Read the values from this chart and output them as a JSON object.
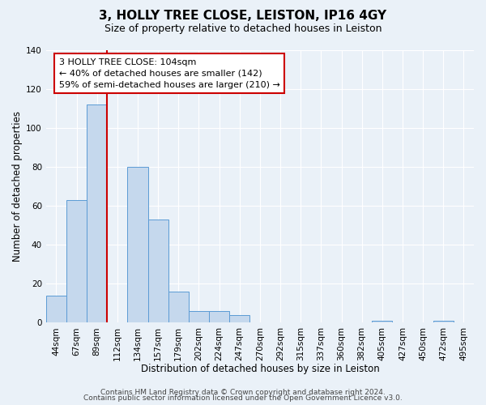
{
  "title": "3, HOLLY TREE CLOSE, LEISTON, IP16 4GY",
  "subtitle": "Size of property relative to detached houses in Leiston",
  "xlabel": "Distribution of detached houses by size in Leiston",
  "ylabel": "Number of detached properties",
  "bar_labels": [
    "44sqm",
    "67sqm",
    "89sqm",
    "112sqm",
    "134sqm",
    "157sqm",
    "179sqm",
    "202sqm",
    "224sqm",
    "247sqm",
    "270sqm",
    "292sqm",
    "315sqm",
    "337sqm",
    "360sqm",
    "382sqm",
    "405sqm",
    "427sqm",
    "450sqm",
    "472sqm",
    "495sqm"
  ],
  "bar_values": [
    14,
    63,
    112,
    0,
    80,
    53,
    16,
    6,
    6,
    4,
    0,
    0,
    0,
    0,
    0,
    0,
    1,
    0,
    0,
    1,
    0
  ],
  "bar_color": "#c5d8ed",
  "bar_edge_color": "#5b9bd5",
  "vline_x": 3.5,
  "annotation_text": "3 HOLLY TREE CLOSE: 104sqm\n← 40% of detached houses are smaller (142)\n59% of semi-detached houses are larger (210) →",
  "annotation_box_color": "#ffffff",
  "annotation_box_edge": "#cc0000",
  "vline_color": "#cc0000",
  "ylim": [
    0,
    140
  ],
  "yticks": [
    0,
    20,
    40,
    60,
    80,
    100,
    120,
    140
  ],
  "background_color": "#eaf1f8",
  "plot_bg_color": "#eaf1f8",
  "footer1": "Contains HM Land Registry data © Crown copyright and database right 2024.",
  "footer2": "Contains public sector information licensed under the Open Government Licence v3.0.",
  "title_fontsize": 11,
  "subtitle_fontsize": 9,
  "xlabel_fontsize": 8.5,
  "ylabel_fontsize": 8.5,
  "tick_fontsize": 7.5,
  "annotation_fontsize": 8,
  "footer_fontsize": 6.5
}
